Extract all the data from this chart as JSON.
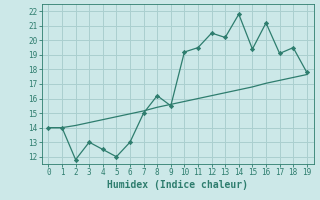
{
  "xlabel": "Humidex (Indice chaleur)",
  "x": [
    0,
    1,
    2,
    3,
    4,
    5,
    6,
    7,
    8,
    9,
    10,
    11,
    12,
    13,
    14,
    15,
    16,
    17,
    18,
    19
  ],
  "y_curve": [
    14,
    14,
    11.8,
    13,
    12.5,
    12,
    13,
    15,
    16.2,
    15.5,
    19.2,
    19.5,
    20.5,
    20.2,
    21.8,
    19.4,
    21.2,
    19.1,
    19.5,
    17.8
  ],
  "y_line": [
    14,
    14,
    14.15,
    14.35,
    14.55,
    14.75,
    14.95,
    15.15,
    15.4,
    15.6,
    15.8,
    16.0,
    16.2,
    16.4,
    16.6,
    16.8,
    17.05,
    17.25,
    17.45,
    17.65
  ],
  "line_color": "#2e7d6e",
  "bg_color": "#cce8e8",
  "grid_color": "#aacfcf",
  "ylim": [
    11.5,
    22.5
  ],
  "xlim": [
    -0.5,
    19.5
  ],
  "yticks": [
    12,
    13,
    14,
    15,
    16,
    17,
    18,
    19,
    20,
    21,
    22
  ],
  "xticks": [
    0,
    1,
    2,
    3,
    4,
    5,
    6,
    7,
    8,
    9,
    10,
    11,
    12,
    13,
    14,
    15,
    16,
    17,
    18,
    19
  ],
  "xlabel_fontsize": 7,
  "tick_fontsize": 5.5
}
